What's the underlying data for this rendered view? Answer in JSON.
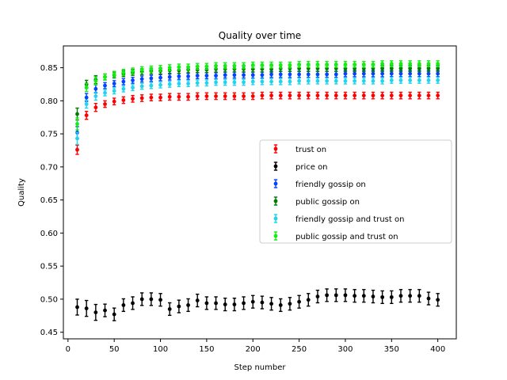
{
  "chart_data": {
    "type": "scatter",
    "title": "Quality over time",
    "xlabel": "Step number",
    "ylabel": "Quality",
    "xlim": [
      -5,
      420
    ],
    "ylim": [
      0.44,
      0.883
    ],
    "x_ticks": [
      0,
      50,
      100,
      150,
      200,
      250,
      300,
      350,
      400
    ],
    "y_ticks": [
      0.45,
      0.5,
      0.55,
      0.6,
      0.65,
      0.7,
      0.75,
      0.8,
      0.85
    ],
    "grid": false,
    "legend_position": "center-right",
    "x": [
      10,
      20,
      30,
      40,
      50,
      60,
      70,
      80,
      90,
      100,
      110,
      120,
      130,
      140,
      150,
      160,
      170,
      180,
      190,
      200,
      210,
      220,
      230,
      240,
      250,
      260,
      270,
      280,
      290,
      300,
      310,
      320,
      330,
      340,
      350,
      360,
      370,
      380,
      390,
      400
    ],
    "series": [
      {
        "name": "trust on",
        "color": "#ff0000",
        "values": [
          0.726,
          0.778,
          0.79,
          0.795,
          0.799,
          0.801,
          0.803,
          0.804,
          0.805,
          0.805,
          0.806,
          0.806,
          0.806,
          0.807,
          0.807,
          0.807,
          0.807,
          0.807,
          0.807,
          0.807,
          0.808,
          0.808,
          0.808,
          0.808,
          0.808,
          0.808,
          0.808,
          0.808,
          0.808,
          0.808,
          0.808,
          0.808,
          0.808,
          0.808,
          0.808,
          0.808,
          0.808,
          0.808,
          0.808,
          0.808
        ],
        "errors": [
          0.007,
          0.006,
          0.006,
          0.005,
          0.005,
          0.005,
          0.005,
          0.005,
          0.005,
          0.005,
          0.005,
          0.005,
          0.005,
          0.005,
          0.005,
          0.005,
          0.005,
          0.005,
          0.005,
          0.005,
          0.005,
          0.005,
          0.005,
          0.005,
          0.005,
          0.005,
          0.005,
          0.005,
          0.005,
          0.005,
          0.005,
          0.005,
          0.005,
          0.005,
          0.005,
          0.005,
          0.005,
          0.005,
          0.005,
          0.005
        ]
      },
      {
        "name": "price on",
        "color": "#000000",
        "values": [
          0.488,
          0.486,
          0.48,
          0.483,
          0.477,
          0.491,
          0.494,
          0.5,
          0.5,
          0.499,
          0.485,
          0.489,
          0.491,
          0.498,
          0.494,
          0.494,
          0.492,
          0.492,
          0.494,
          0.496,
          0.495,
          0.493,
          0.491,
          0.493,
          0.496,
          0.499,
          0.504,
          0.506,
          0.506,
          0.506,
          0.505,
          0.505,
          0.504,
          0.503,
          0.503,
          0.505,
          0.505,
          0.505,
          0.501,
          0.499
        ]
      },
      {
        "name": "friendly gossip on",
        "color": "#0044ff",
        "values": [
          0.752,
          0.805,
          0.818,
          0.823,
          0.826,
          0.829,
          0.831,
          0.833,
          0.834,
          0.835,
          0.836,
          0.837,
          0.837,
          0.838,
          0.838,
          0.838,
          0.839,
          0.839,
          0.839,
          0.839,
          0.839,
          0.84,
          0.84,
          0.84,
          0.84,
          0.84,
          0.84,
          0.84,
          0.84,
          0.841,
          0.841,
          0.841,
          0.841,
          0.841,
          0.841,
          0.841,
          0.841,
          0.841,
          0.841,
          0.841
        ]
      },
      {
        "name": "public gossip on",
        "color": "#007a00",
        "values": [
          0.78,
          0.825,
          0.832,
          0.836,
          0.839,
          0.841,
          0.843,
          0.844,
          0.845,
          0.845,
          0.846,
          0.846,
          0.847,
          0.847,
          0.847,
          0.848,
          0.848,
          0.848,
          0.848,
          0.848,
          0.848,
          0.848,
          0.849,
          0.849,
          0.849,
          0.849,
          0.849,
          0.849,
          0.849,
          0.849,
          0.849,
          0.849,
          0.849,
          0.849,
          0.849,
          0.849,
          0.849,
          0.849,
          0.849,
          0.849
        ]
      },
      {
        "name": "friendly gossip and trust on",
        "color": "#22d3ee",
        "values": [
          0.743,
          0.795,
          0.807,
          0.812,
          0.815,
          0.818,
          0.82,
          0.822,
          0.823,
          0.824,
          0.825,
          0.826,
          0.826,
          0.827,
          0.827,
          0.828,
          0.828,
          0.828,
          0.828,
          0.829,
          0.829,
          0.829,
          0.829,
          0.829,
          0.83,
          0.83,
          0.83,
          0.83,
          0.83,
          0.83,
          0.83,
          0.83,
          0.83,
          0.83,
          0.831,
          0.831,
          0.831,
          0.831,
          0.831,
          0.831
        ]
      },
      {
        "name": "public gossip and trust on",
        "color": "#11ee11",
        "values": [
          0.765,
          0.82,
          0.83,
          0.836,
          0.84,
          0.843,
          0.845,
          0.847,
          0.848,
          0.849,
          0.85,
          0.851,
          0.851,
          0.852,
          0.852,
          0.853,
          0.853,
          0.853,
          0.853,
          0.854,
          0.854,
          0.854,
          0.854,
          0.854,
          0.855,
          0.855,
          0.855,
          0.855,
          0.855,
          0.855,
          0.855,
          0.855,
          0.855,
          0.856,
          0.856,
          0.856,
          0.856,
          0.856,
          0.856,
          0.856
        ]
      }
    ]
  }
}
